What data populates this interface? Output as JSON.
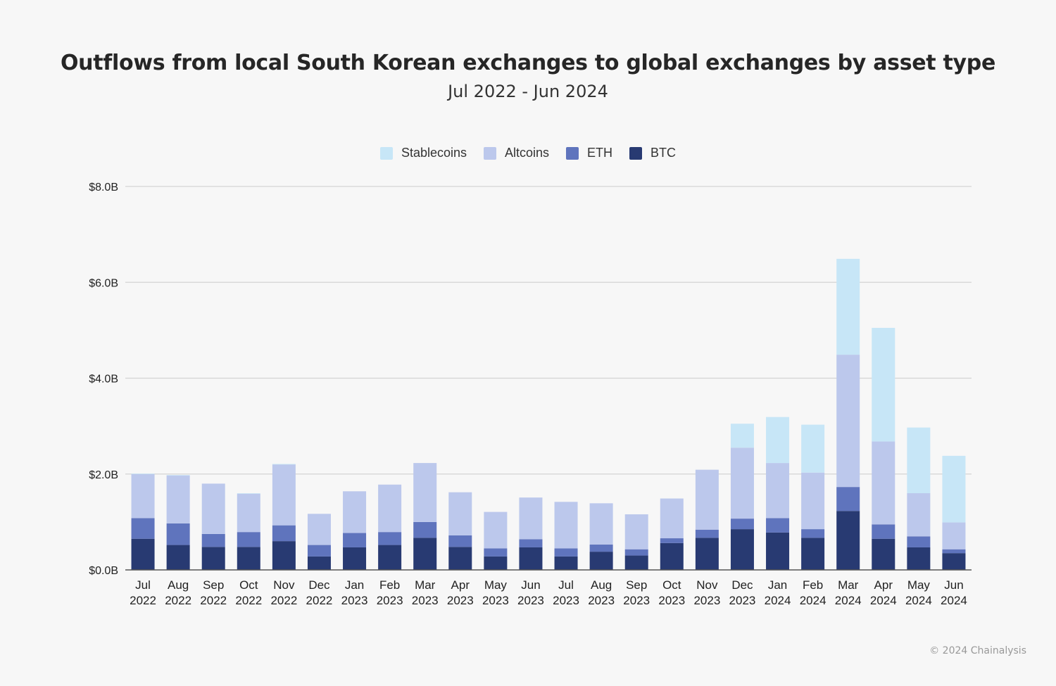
{
  "header": {
    "title": "Outflows from local South Korean exchanges to global exchanges by asset type",
    "subtitle": "Jul 2022 - Jun 2024"
  },
  "footer": {
    "copyright": "© 2024 Chainalysis"
  },
  "colors": {
    "Stablecoins": "#c7e6f7",
    "Altcoins": "#bcc8ec",
    "ETH": "#5f74bd",
    "BTC": "#283a72",
    "grid": "#d4d4d4",
    "axis": "#555555"
  },
  "chart_data": {
    "type": "bar",
    "stacked": true,
    "legend_position": "top",
    "grid": true,
    "categories": [
      [
        "Jul",
        "2022"
      ],
      [
        "Aug",
        "2022"
      ],
      [
        "Sep",
        "2022"
      ],
      [
        "Oct",
        "2022"
      ],
      [
        "Nov",
        "2022"
      ],
      [
        "Dec",
        "2022"
      ],
      [
        "Jan",
        "2023"
      ],
      [
        "Feb",
        "2023"
      ],
      [
        "Mar",
        "2023"
      ],
      [
        "Apr",
        "2023"
      ],
      [
        "May",
        "2023"
      ],
      [
        "Jun",
        "2023"
      ],
      [
        "Jul",
        "2023"
      ],
      [
        "Aug",
        "2023"
      ],
      [
        "Sep",
        "2023"
      ],
      [
        "Oct",
        "2023"
      ],
      [
        "Nov",
        "2023"
      ],
      [
        "Dec",
        "2023"
      ],
      [
        "Jan",
        "2024"
      ],
      [
        "Feb",
        "2024"
      ],
      [
        "Mar",
        "2024"
      ],
      [
        "Apr",
        "2024"
      ],
      [
        "May",
        "2024"
      ],
      [
        "Jun",
        "2024"
      ]
    ],
    "series": [
      {
        "name": "BTC",
        "values": [
          0.65,
          0.52,
          0.48,
          0.48,
          0.6,
          0.28,
          0.47,
          0.52,
          0.67,
          0.48,
          0.28,
          0.47,
          0.28,
          0.38,
          0.3,
          0.56,
          0.67,
          0.85,
          0.78,
          0.67,
          1.23,
          0.65,
          0.47,
          0.35
        ]
      },
      {
        "name": "ETH",
        "values": [
          0.43,
          0.45,
          0.27,
          0.31,
          0.33,
          0.24,
          0.3,
          0.27,
          0.33,
          0.24,
          0.17,
          0.17,
          0.17,
          0.15,
          0.13,
          0.1,
          0.17,
          0.22,
          0.3,
          0.18,
          0.5,
          0.3,
          0.23,
          0.08
        ]
      },
      {
        "name": "Altcoins",
        "values": [
          0.92,
          1.0,
          1.05,
          0.8,
          1.27,
          0.65,
          0.87,
          0.99,
          1.23,
          0.9,
          0.76,
          0.87,
          0.97,
          0.86,
          0.73,
          0.83,
          1.25,
          1.48,
          1.15,
          1.18,
          2.76,
          1.73,
          0.9,
          0.56
        ]
      },
      {
        "name": "Stablecoins",
        "values": [
          0.01,
          0.01,
          0.0,
          0.01,
          0.01,
          0.0,
          0.0,
          0.0,
          0.0,
          0.0,
          0.0,
          0.0,
          0.0,
          0.0,
          0.0,
          0.0,
          0.0,
          0.5,
          0.96,
          1.0,
          2.0,
          2.37,
          1.37,
          1.39
        ]
      }
    ],
    "yticks": [
      "$0.0B",
      "$2.0B",
      "$4.0B",
      "$6.0B",
      "$8.0B"
    ],
    "ylim": [
      0,
      8
    ]
  }
}
